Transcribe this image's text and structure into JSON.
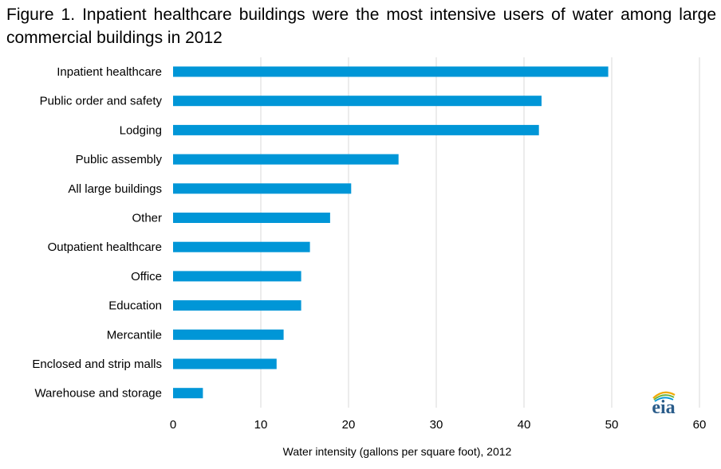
{
  "chart_data": {
    "type": "bar",
    "orientation": "horizontal",
    "title": "Figure 1.  Inpatient healthcare buildings  were the most intensive users of water among large commercial buildings  in 2012",
    "categories": [
      "Inpatient healthcare",
      "Public order and safety",
      "Lodging",
      "Public assembly",
      "All large buildings",
      "Other",
      "Outpatient healthcare",
      "Office",
      "Education",
      "Mercantile",
      "Enclosed and strip malls",
      "Warehouse and storage"
    ],
    "values": [
      49.6,
      42.0,
      41.7,
      25.7,
      20.3,
      17.9,
      15.6,
      14.6,
      14.6,
      12.6,
      11.8,
      3.4
    ],
    "xlabel": "Water intensity (gallons per square foot), 2012",
    "ylabel": "",
    "xlim": [
      0,
      60
    ],
    "xticks": [
      "0",
      "10",
      "20",
      "30",
      "40",
      "50",
      "60"
    ],
    "grid": "vertical",
    "bar_color": "#0096d7"
  },
  "logo": {
    "text": "eia",
    "colors": [
      "#2a5c8a",
      "#f2a900",
      "#6cb33f",
      "#0096d7"
    ]
  }
}
